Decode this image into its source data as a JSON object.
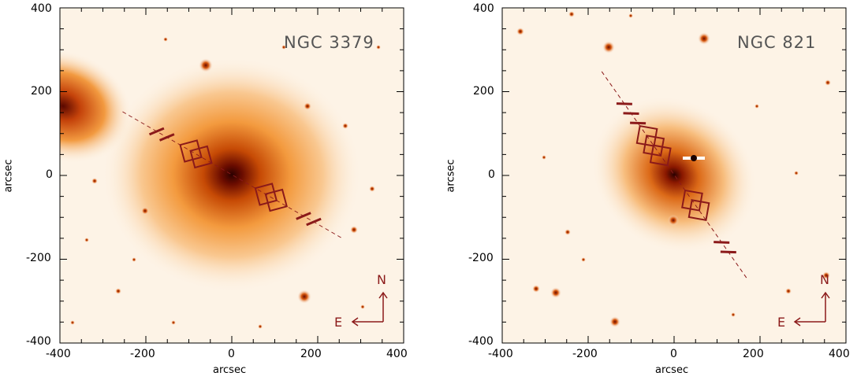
{
  "panels": [
    {
      "title": "NGC 3379",
      "xlabel": "arcsec",
      "ylabel": "arcsec",
      "x_ticks": [
        "-400",
        "-200",
        "0",
        "200",
        "400"
      ],
      "y_ticks": [
        "400",
        "200",
        "0",
        "-200",
        "-400"
      ],
      "compass": {
        "north": "N",
        "east": "E"
      }
    },
    {
      "title": "NGC 821",
      "xlabel": "arcsec",
      "ylabel": "arcsec",
      "x_ticks": [
        "-400",
        "-200",
        "0",
        "200",
        "400"
      ],
      "y_ticks": [
        "400",
        "200",
        "0",
        "-200",
        "-400"
      ],
      "compass": {
        "north": "N",
        "east": "E"
      }
    }
  ],
  "colors": {
    "background": "#fdf3e6",
    "galaxy_core": "#3a0000",
    "galaxy_mid": "#e0600a",
    "galaxy_outer": "#f7b870",
    "overlay": "#8b1a1a",
    "compass": "#8b1a1a",
    "axes": "#000000"
  },
  "overlays": [
    {
      "slit_angle_deg": 30,
      "field_count": 4,
      "slit_dashes": 4
    },
    {
      "slit_angle_deg": 55,
      "field_count": 5,
      "slit_dashes": 5
    }
  ]
}
